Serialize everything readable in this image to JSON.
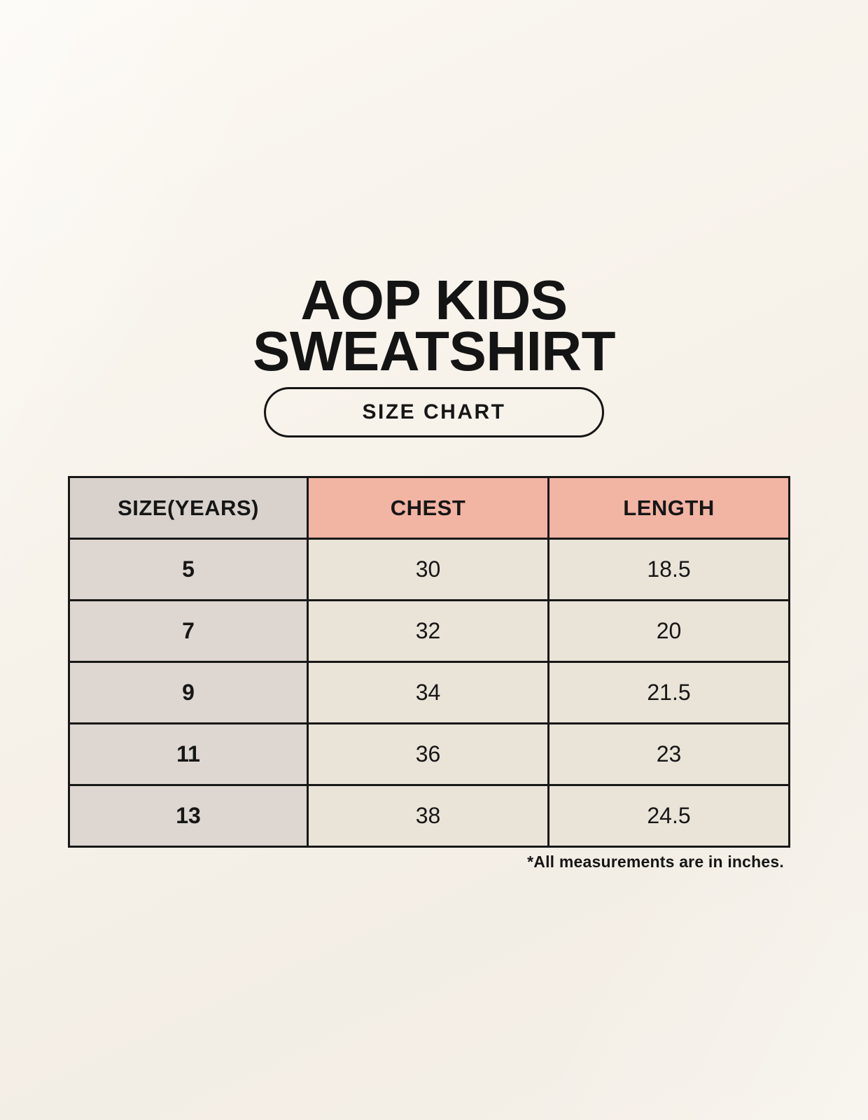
{
  "header": {
    "title_line1": "AOP KIDS",
    "title_line2": "SWEATSHIRT",
    "badge_label": "SIZE CHART"
  },
  "footnote": "*All measurements are in inches.",
  "chart_data": {
    "type": "table",
    "title": "AOP KIDS SWEATSHIRT size chart",
    "units": "inches",
    "columns": [
      "SIZE(YEARS)",
      "CHEST",
      "LENGTH"
    ],
    "rows": [
      [
        "5",
        "30",
        "18.5"
      ],
      [
        "7",
        "32",
        "20"
      ],
      [
        "9",
        "34",
        "21.5"
      ],
      [
        "11",
        "36",
        "23"
      ],
      [
        "13",
        "38",
        "24.5"
      ]
    ]
  },
  "colors": {
    "background": "#f5f0e8",
    "header_pink": "#f2b4a3",
    "size_column_gray": "#ded6d0",
    "value_cell_cream": "#eae3d8",
    "border_black": "#181818",
    "text_black": "#161616"
  }
}
